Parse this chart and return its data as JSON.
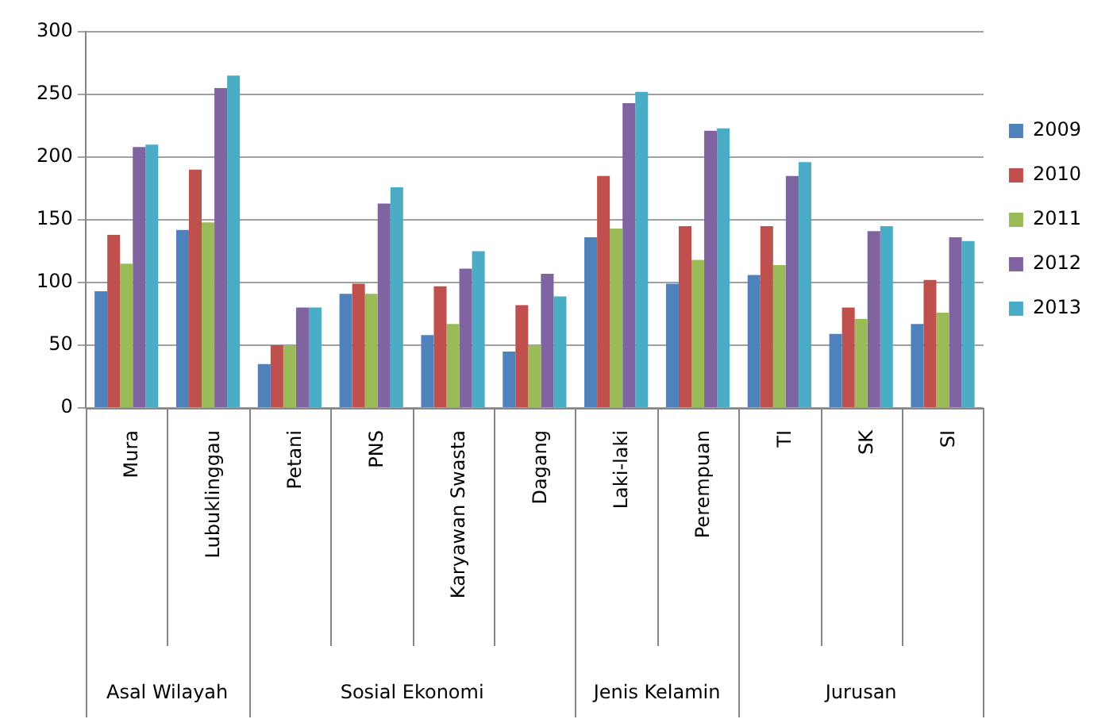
{
  "chart_data": {
    "type": "bar",
    "categories": [
      "Mura",
      "Lubuklinggau",
      "Petani",
      "PNS",
      "Karyawan Swasta",
      "Dagang",
      "Laki-laki",
      "Perempuan",
      "TI",
      "SK",
      "SI"
    ],
    "series": [
      {
        "name": "2009",
        "color": "#4f81bd",
        "values": [
          93,
          142,
          35,
          91,
          58,
          45,
          136,
          99,
          106,
          59,
          67
        ]
      },
      {
        "name": "2010",
        "color": "#c0504d",
        "values": [
          138,
          190,
          50,
          99,
          97,
          82,
          185,
          145,
          145,
          80,
          102
        ]
      },
      {
        "name": "2011",
        "color": "#9bbb59",
        "values": [
          115,
          148,
          50,
          91,
          67,
          50,
          143,
          118,
          114,
          71,
          76
        ]
      },
      {
        "name": "2012",
        "color": "#8064a2",
        "values": [
          208,
          255,
          80,
          163,
          111,
          107,
          243,
          221,
          185,
          141,
          136
        ]
      },
      {
        "name": "2013",
        "color": "#4bacc6",
        "values": [
          210,
          265,
          80,
          176,
          125,
          89,
          252,
          223,
          196,
          145,
          133
        ]
      }
    ],
    "annotations": [
      "Asal Wilayah",
      "Sosial Ekonomi",
      "Jenis Kelamin",
      "Jurusan"
    ],
    "ylim": [
      0,
      300
    ],
    "yticks": [
      0,
      50,
      100,
      150,
      200,
      250,
      300
    ],
    "grid": "y",
    "legend": "right"
  }
}
